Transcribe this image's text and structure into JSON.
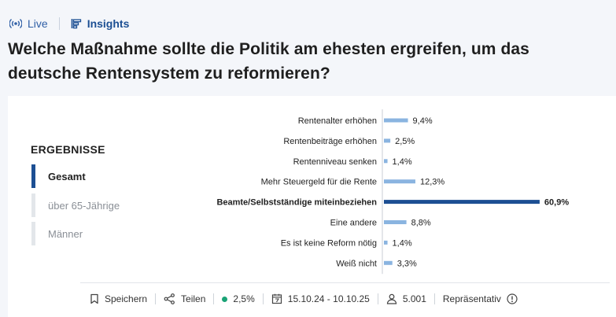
{
  "tabs": {
    "live": "Live",
    "insights": "Insights"
  },
  "title": "Welche Maßnahme sollte die Politik am ehesten ergreifen, um das deutsche Rentensystem zu reformieren?",
  "results": {
    "heading": "ERGEBNISSE",
    "filters": [
      {
        "label": "Gesamt",
        "active": true
      },
      {
        "label": "über 65-Jährige",
        "active": false
      },
      {
        "label": "Männer",
        "active": false
      }
    ]
  },
  "chart_data": {
    "type": "bar",
    "orientation": "horizontal",
    "categories": [
      "Rentenalter erhöhen",
      "Rentenbeiträge erhöhen",
      "Rentenniveau senken",
      "Mehr Steuergeld für die Rente",
      "Beamte/Selbstständige miteinbeziehen",
      "Eine andere",
      "Es ist keine Reform nötig",
      "Weiß nicht"
    ],
    "values": [
      9.4,
      2.5,
      1.4,
      12.3,
      60.9,
      8.8,
      1.4,
      3.3
    ],
    "value_labels": [
      "9,4%",
      "2,5%",
      "1,4%",
      "12,3%",
      "60,9%",
      "8,8%",
      "1,4%",
      "3,3%"
    ],
    "highlight_index": 4,
    "colors": {
      "bar": "#8ab4e0",
      "highlight": "#1c4f93",
      "axis": "#c9ced6"
    }
  },
  "footer": {
    "save": "Speichern",
    "share": "Teilen",
    "margin_of_error": "2,5%",
    "period": "15.10.24 - 10.10.25",
    "respondents": "5.001",
    "representative": "Repräsentativ"
  }
}
